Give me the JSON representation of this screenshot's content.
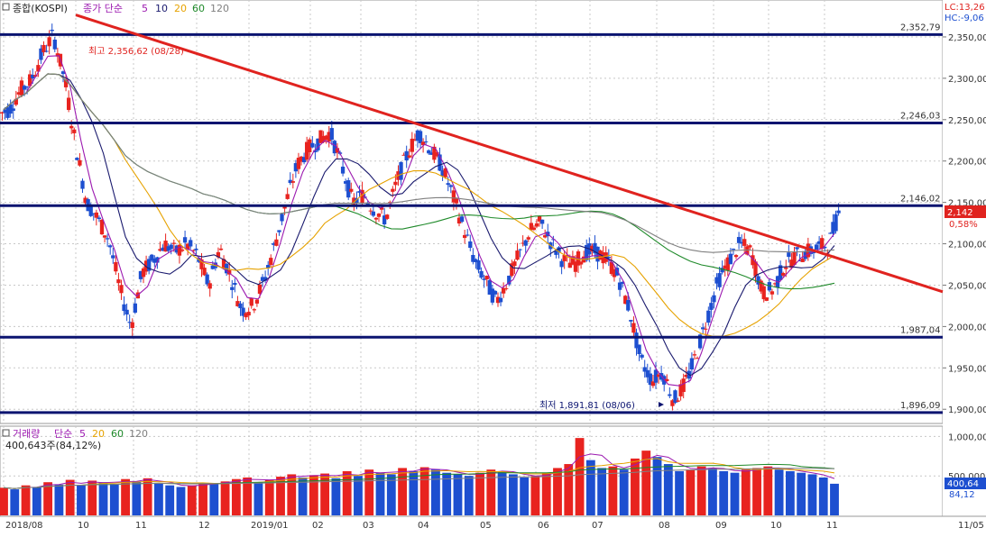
{
  "window": {
    "price_title": "종합(KOSPI)",
    "price_indicator": "종가 단순",
    "volume_title": "거래량",
    "volume_indicator": "단순",
    "volume_summary": "400,643주(84,12%)"
  },
  "price_ma_periods": [
    "5",
    "10",
    "20",
    "60",
    "120"
  ],
  "volume_ma_periods": [
    "5",
    "20",
    "60",
    "120"
  ],
  "colors": {
    "up": "#e8231f",
    "down": "#1d4fd0",
    "ma5": "#9c1ab0",
    "ma10": "#1a1a6e",
    "ma20": "#e6a200",
    "ma60": "#1f8a2a",
    "ma120": "#808080",
    "level_line": "#0b1470",
    "trend_line": "#e0231f",
    "grid": "#c8c8c8"
  },
  "badges": {
    "lc": "LC:13,26",
    "hc": "HC:-9,06",
    "last_price": "2,142",
    "last_change": "0,58%",
    "last_volume": "400,64",
    "last_volume_pct": "84,12"
  },
  "chart_data": [
    {
      "type": "candlestick",
      "title": "종합(KOSPI)",
      "x_labels": [
        "2018/08",
        "10",
        "11",
        "12",
        "2019/01",
        "02",
        "03",
        "04",
        "05",
        "06",
        "07",
        "08",
        "09",
        "10",
        "11",
        "11/05"
      ],
      "y_ticks": [
        "2,350,00",
        "2,300,00",
        "2,250,00",
        "2,200,00",
        "2,150,00",
        "2,100,00",
        "2,050,00",
        "2,000,00",
        "1,950,00",
        "1,900,00"
      ],
      "ylim": [
        1885,
        2375
      ],
      "levels": [
        {
          "label": "2,352,79",
          "value": 2352.79
        },
        {
          "label": "2,246,03",
          "value": 2246.03
        },
        {
          "label": "2,146,02",
          "value": 2146.02
        },
        {
          "label": "1,987,04",
          "value": 1987.04
        },
        {
          "label": "1,896,09",
          "value": 1896.09
        }
      ],
      "annotations": {
        "high": "최고 2,356,62 (08/28)",
        "low": "최저 1,891,81 (08/06)"
      },
      "trendline": {
        "from": [
          "2018/08",
          2370
        ],
        "to": [
          "11/05",
          2042
        ]
      },
      "last_close": 2142,
      "closes": [
        2262,
        2285,
        2298,
        2330,
        2352,
        2300,
        2220,
        2150,
        2130,
        2105,
        2045,
        2000,
        2065,
        2080,
        2100,
        2090,
        2100,
        2085,
        2050,
        2095,
        2060,
        2020,
        2025,
        2055,
        2100,
        2150,
        2195,
        2215,
        2225,
        2235,
        2195,
        2150,
        2160,
        2140,
        2130,
        2175,
        2210,
        2235,
        2215,
        2195,
        2160,
        2120,
        2080,
        2055,
        2030,
        2055,
        2085,
        2115,
        2125,
        2100,
        2080,
        2075,
        2090,
        2090,
        2080,
        2060,
        2020,
        1960,
        1935,
        1945,
        1910,
        1930,
        1965,
        2010,
        2055,
        2080,
        2100,
        2090,
        2040,
        2045,
        2075,
        2085,
        2090,
        2095,
        2100,
        2142
      ],
      "series": [
        {
          "name": "5",
          "smoothing": 3
        },
        {
          "name": "10",
          "smoothing": 6
        },
        {
          "name": "20",
          "smoothing": 11
        },
        {
          "name": "60",
          "smoothing": 30
        },
        {
          "name": "120",
          "smoothing": 55
        }
      ]
    },
    {
      "type": "bar",
      "title": "거래량",
      "y_ticks": [
        "1,000,00",
        "500,000"
      ],
      "ylim": [
        0,
        1050000
      ],
      "values": [
        350000,
        330000,
        380000,
        360000,
        420000,
        390000,
        450000,
        380000,
        440000,
        420000,
        400000,
        460000,
        430000,
        470000,
        410000,
        380000,
        360000,
        380000,
        410000,
        400000,
        430000,
        460000,
        480000,
        420000,
        450000,
        490000,
        520000,
        480000,
        510000,
        530000,
        470000,
        560000,
        500000,
        580000,
        540000,
        520000,
        600000,
        560000,
        610000,
        580000,
        540000,
        520000,
        500000,
        540000,
        580000,
        560000,
        520000,
        480000,
        500000,
        540000,
        600000,
        650000,
        980000,
        700000,
        600000,
        620000,
        580000,
        720000,
        820000,
        740000,
        650000,
        560000,
        580000,
        620000,
        600000,
        560000,
        540000,
        580000,
        600000,
        620000,
        580000,
        560000,
        540000,
        520000,
        480000,
        400643
      ],
      "series": [
        {
          "name": "5"
        },
        {
          "name": "20"
        },
        {
          "name": "60"
        },
        {
          "name": "120"
        }
      ]
    }
  ]
}
